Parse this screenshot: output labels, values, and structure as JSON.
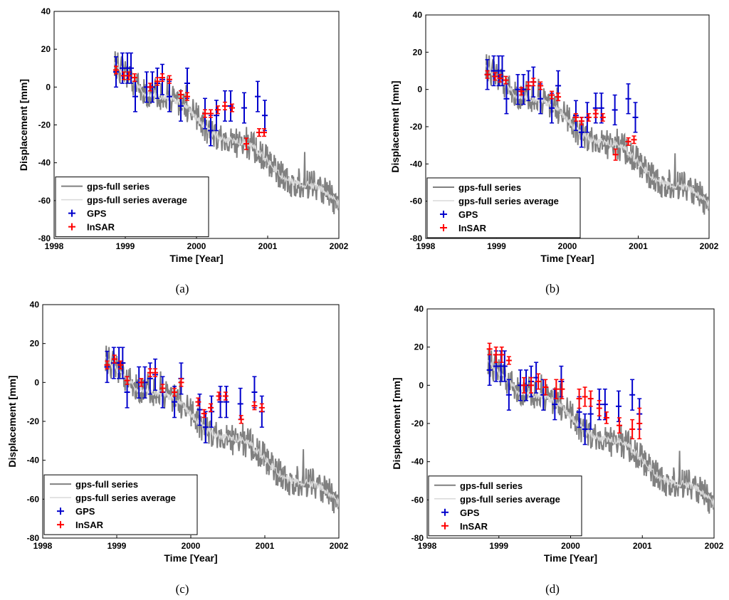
{
  "chart_data": [
    {
      "type": "line",
      "panel": "a",
      "caption": "(a)",
      "xlabel": "Time [Year]",
      "ylabel": "Displacement [mm]",
      "xlim": [
        1998,
        2002
      ],
      "ylim": [
        -80,
        40
      ],
      "xticks": [
        "1998",
        "1999",
        "2000",
        "2001",
        "2002"
      ],
      "yticks": [
        "-80",
        "-60",
        "-40",
        "-20",
        "0",
        "20",
        "40"
      ],
      "legend_position": "bottom-left",
      "legend": [
        "gps-full series",
        "gps-full series average",
        "GPS",
        "InSAR"
      ],
      "series": [
        {
          "name": "gps-full series",
          "color": "#808080",
          "x_range": [
            1998.85,
            2002.0
          ]
        },
        {
          "name": "gps-full series average",
          "color": "#d9d9d9",
          "x_range": [
            1998.85,
            2002.0
          ]
        },
        {
          "name": "GPS",
          "color": "#0000cc",
          "x": [
            1998.87,
            1998.96,
            1999.03,
            1999.08,
            1999.14,
            1999.3,
            1999.38,
            1999.45,
            1999.52,
            1999.62,
            1999.78,
            1999.87,
            2000.12,
            2000.2,
            2000.28,
            2000.4,
            2000.48,
            2000.67,
            2000.86,
            2000.96
          ],
          "y": [
            8,
            10,
            10,
            10,
            -5,
            0,
            0,
            2,
            4,
            -5,
            -10,
            2,
            -14,
            -23,
            -15,
            -10,
            -10,
            -11,
            -5,
            -15
          ],
          "err": [
            8,
            8,
            8,
            8,
            8,
            8,
            8,
            8,
            8,
            8,
            8,
            8,
            8,
            8,
            8,
            8,
            8,
            8,
            8,
            8
          ]
        },
        {
          "name": "InSAR",
          "color": "#ff0000",
          "x": [
            1998.87,
            1998.98,
            1999.05,
            1999.13,
            1999.35,
            1999.45,
            1999.52,
            1999.62,
            1999.78,
            1999.87,
            2000.12,
            2000.2,
            2000.3,
            2000.4,
            2000.5,
            2000.7,
            2000.88,
            2000.95
          ],
          "y": [
            9,
            6,
            6,
            5,
            0,
            3,
            5,
            4,
            -4,
            -5,
            -14,
            -14,
            -12,
            -10,
            -11,
            -30,
            -24,
            -24
          ],
          "err": [
            2,
            2,
            2,
            2,
            2,
            2,
            2,
            2,
            2,
            2,
            2,
            2,
            2,
            2,
            2,
            3,
            2,
            2
          ]
        }
      ]
    },
    {
      "type": "line",
      "panel": "b",
      "caption": "(b)",
      "xlabel": "Time [Year]",
      "ylabel": "Displacement [mm]",
      "xlim": [
        1998,
        2002
      ],
      "ylim": [
        -80,
        40
      ],
      "xticks": [
        "1998",
        "1999",
        "2000",
        "2001",
        "2002"
      ],
      "yticks": [
        "-80",
        "-60",
        "-40",
        "-20",
        "0",
        "20",
        "40"
      ],
      "legend_position": "bottom-left",
      "legend": [
        "gps-full series",
        "gps-full series average",
        "GPS",
        "InSAR"
      ],
      "series": [
        {
          "name": "gps-full series",
          "color": "#808080",
          "x_range": [
            1998.85,
            2002.0
          ]
        },
        {
          "name": "gps-full series average",
          "color": "#d9d9d9",
          "x_range": [
            1998.85,
            2002.0
          ]
        },
        {
          "name": "GPS",
          "color": "#0000cc",
          "x": [
            1998.87,
            1998.96,
            1999.03,
            1999.08,
            1999.14,
            1999.3,
            1999.38,
            1999.45,
            1999.52,
            1999.62,
            1999.78,
            1999.87,
            2000.12,
            2000.2,
            2000.28,
            2000.4,
            2000.48,
            2000.67,
            2000.86,
            2000.96
          ],
          "y": [
            8,
            10,
            10,
            10,
            -5,
            0,
            0,
            2,
            4,
            -5,
            -10,
            2,
            -14,
            -23,
            -15,
            -10,
            -10,
            -11,
            -5,
            -15
          ],
          "err": [
            8,
            8,
            8,
            8,
            8,
            8,
            8,
            8,
            8,
            8,
            8,
            8,
            8,
            8,
            8,
            8,
            8,
            8,
            8,
            8
          ]
        },
        {
          "name": "InSAR",
          "color": "#ff0000",
          "x": [
            1998.87,
            1998.98,
            1999.05,
            1999.13,
            1999.35,
            1999.45,
            1999.52,
            1999.62,
            1999.78,
            1999.87,
            2000.12,
            2000.2,
            2000.3,
            2000.4,
            2000.5,
            2000.68,
            2000.86,
            2000.94
          ],
          "y": [
            8,
            7,
            6,
            5,
            -1,
            2,
            4,
            2,
            -3,
            -4,
            -15,
            -17,
            -15,
            -13,
            -15,
            -35,
            -28,
            -27
          ],
          "err": [
            2,
            2,
            2,
            2,
            2,
            2,
            2,
            2,
            2,
            2,
            2,
            2,
            2,
            2,
            2,
            3,
            2,
            2
          ]
        }
      ]
    },
    {
      "type": "line",
      "panel": "c",
      "caption": "(c)",
      "xlabel": "Time [Year]",
      "ylabel": "Displacement [mm]",
      "xlim": [
        1998,
        2002
      ],
      "ylim": [
        -80,
        40
      ],
      "xticks": [
        "1998",
        "1999",
        "2000",
        "2001",
        "2002"
      ],
      "yticks": [
        "-80",
        "-60",
        "-40",
        "-20",
        "0",
        "20",
        "40"
      ],
      "legend_position": "bottom-left",
      "legend": [
        "gps-full series",
        "gps-full series average",
        "GPS",
        "InSAR"
      ],
      "series": [
        {
          "name": "gps-full series",
          "color": "#808080",
          "x_range": [
            1998.85,
            2002.0
          ]
        },
        {
          "name": "gps-full series average",
          "color": "#d9d9d9",
          "x_range": [
            1998.85,
            2002.0
          ]
        },
        {
          "name": "GPS",
          "color": "#0000cc",
          "x": [
            1998.87,
            1998.96,
            1999.03,
            1999.08,
            1999.14,
            1999.3,
            1999.38,
            1999.45,
            1999.52,
            1999.62,
            1999.78,
            1999.87,
            2000.12,
            2000.2,
            2000.28,
            2000.4,
            2000.48,
            2000.67,
            2000.86,
            2000.96
          ],
          "y": [
            8,
            10,
            10,
            10,
            -5,
            0,
            0,
            2,
            4,
            -5,
            -10,
            2,
            -14,
            -23,
            -15,
            -10,
            -10,
            -11,
            -5,
            -15
          ],
          "err": [
            8,
            8,
            8,
            8,
            8,
            8,
            8,
            8,
            8,
            8,
            8,
            8,
            8,
            8,
            8,
            8,
            8,
            8,
            8,
            8
          ]
        },
        {
          "name": "InSAR",
          "color": "#ff0000",
          "x": [
            1998.87,
            1998.97,
            1999.05,
            1999.14,
            1999.33,
            1999.45,
            1999.52,
            1999.62,
            1999.78,
            1999.87,
            2000.1,
            2000.18,
            2000.27,
            2000.38,
            2000.47,
            2000.68,
            2000.86,
            2000.96
          ],
          "y": [
            9,
            12,
            9,
            1,
            0,
            5,
            5,
            -3,
            -5,
            0,
            -10,
            -16,
            -13,
            -7,
            -7,
            -19,
            -12,
            -13
          ],
          "err": [
            2,
            2,
            2,
            2,
            2,
            2,
            2,
            2,
            2,
            2,
            2,
            2,
            2,
            2,
            2,
            2,
            2,
            2
          ]
        }
      ]
    },
    {
      "type": "line",
      "panel": "d",
      "caption": "(d)",
      "xlabel": "Time [Year]",
      "ylabel": "Displacement [mm]",
      "xlim": [
        1998,
        2002
      ],
      "ylim": [
        -80,
        40
      ],
      "xticks": [
        "1998",
        "1999",
        "2000",
        "2001",
        "2002"
      ],
      "yticks": [
        "-80",
        "-60",
        "-40",
        "-20",
        "0",
        "20",
        "40"
      ],
      "legend_position": "bottom-left",
      "legend": [
        "gps-full series",
        "gps-full series average",
        "GPS",
        "InSAR"
      ],
      "series": [
        {
          "name": "gps-full series",
          "color": "#808080",
          "x_range": [
            1998.85,
            2002.0
          ]
        },
        {
          "name": "gps-full series average",
          "color": "#d9d9d9",
          "x_range": [
            1998.85,
            2002.0
          ]
        },
        {
          "name": "GPS",
          "color": "#0000cc",
          "x": [
            1998.87,
            1998.96,
            1999.03,
            1999.08,
            1999.14,
            1999.3,
            1999.38,
            1999.45,
            1999.52,
            1999.62,
            1999.78,
            1999.87,
            2000.12,
            2000.2,
            2000.28,
            2000.4,
            2000.48,
            2000.67,
            2000.86,
            2000.96
          ],
          "y": [
            8,
            10,
            10,
            10,
            -5,
            0,
            0,
            2,
            4,
            -5,
            -10,
            2,
            -14,
            -23,
            -15,
            -10,
            -10,
            -11,
            -5,
            -15
          ],
          "err": [
            8,
            8,
            8,
            8,
            8,
            8,
            8,
            8,
            8,
            8,
            8,
            8,
            8,
            8,
            8,
            8,
            8,
            8,
            8,
            8
          ]
        },
        {
          "name": "InSAR",
          "color": "#ff0000",
          "x": [
            1998.87,
            1998.96,
            1999.04,
            1999.14,
            1999.35,
            1999.45,
            1999.55,
            1999.65,
            1999.8,
            1999.88,
            2000.12,
            2000.2,
            2000.28,
            2000.4,
            2000.5,
            2000.68,
            2000.86,
            2000.96
          ],
          "y": [
            19,
            16,
            16,
            13,
            0,
            0,
            2,
            -1,
            -2,
            -2,
            -7,
            -6,
            -7,
            -12,
            -17,
            -21,
            -23,
            -20
          ],
          "err": [
            3,
            4,
            4,
            2,
            4,
            4,
            4,
            4,
            5,
            5,
            5,
            5,
            4,
            4,
            3,
            4,
            5,
            8
          ]
        }
      ]
    }
  ]
}
